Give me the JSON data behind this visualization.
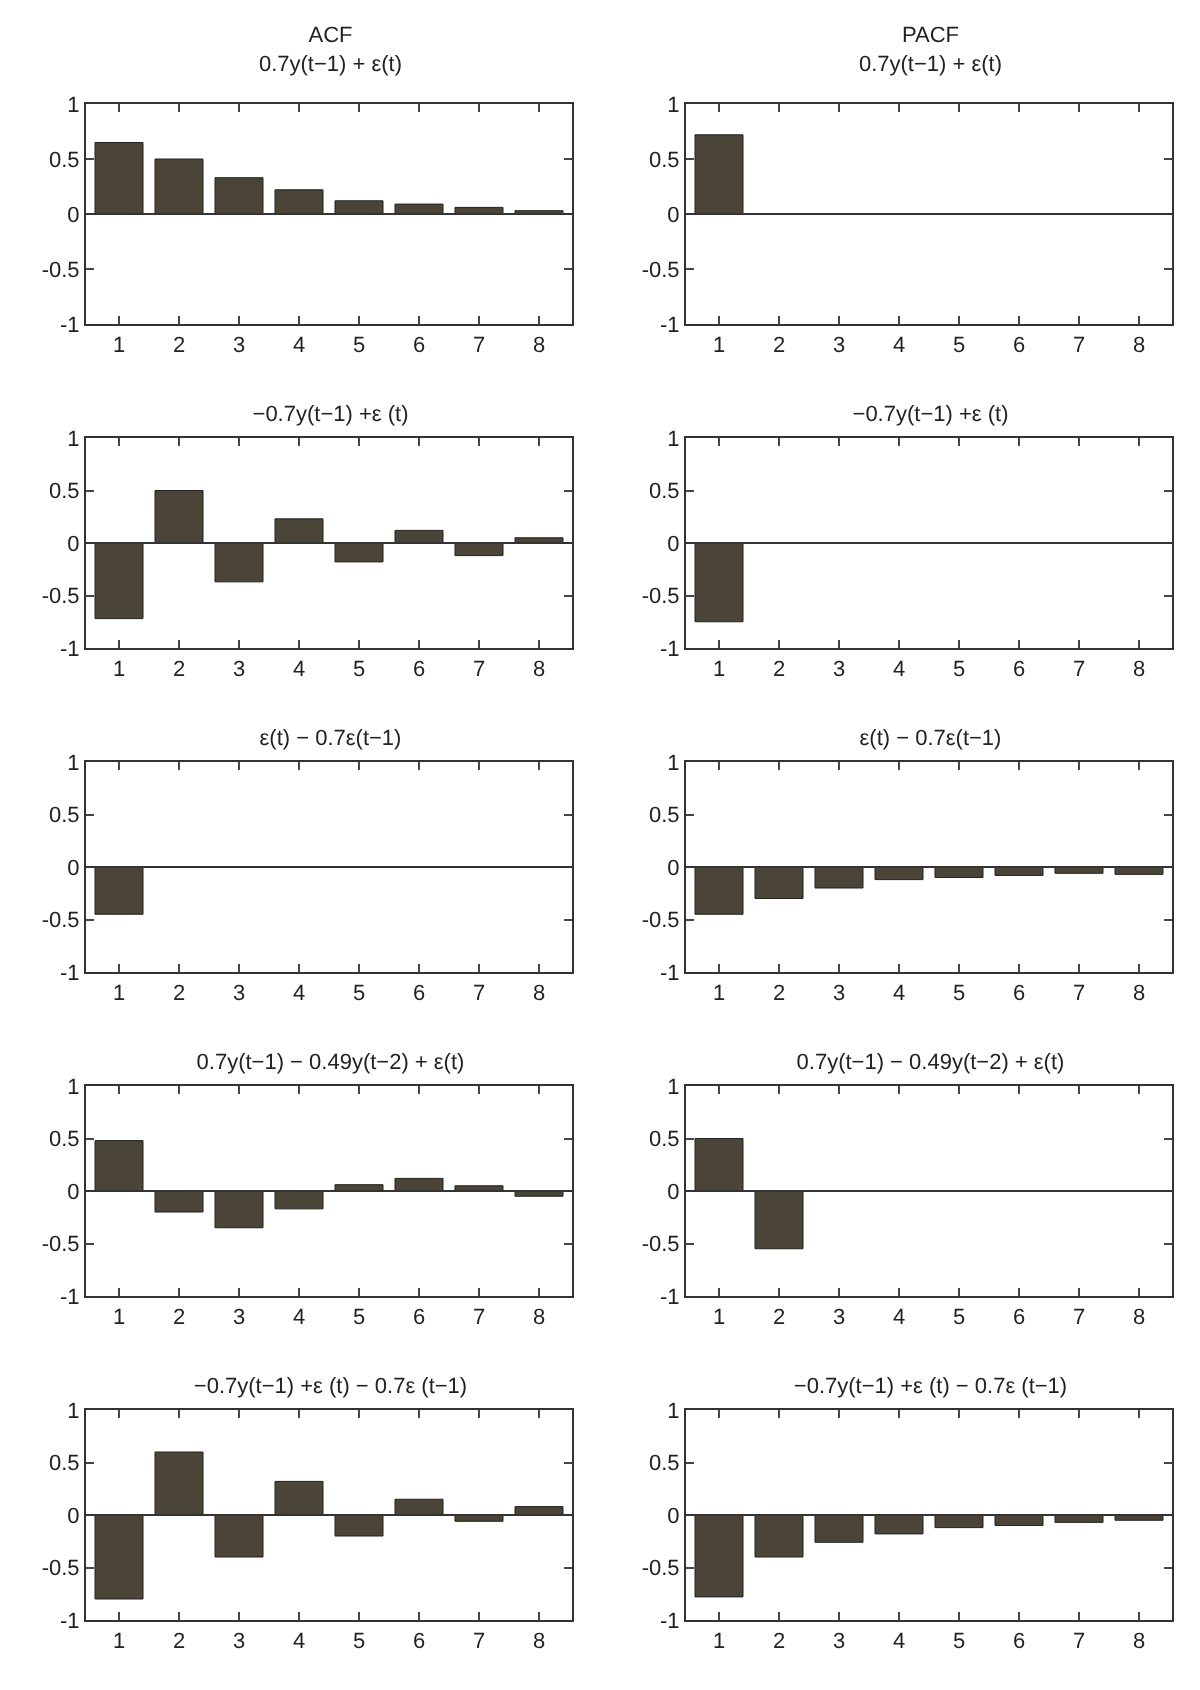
{
  "chart_data": [
    {
      "type": "bar",
      "title": "ACF",
      "subtitle": "0.7y(t−1) + ε(t)",
      "categories": [
        "1",
        "2",
        "3",
        "4",
        "5",
        "6",
        "7",
        "8"
      ],
      "values": [
        0.65,
        0.5,
        0.33,
        0.22,
        0.12,
        0.09,
        0.06,
        0.03
      ],
      "color": "#4a4536",
      "ylim": [
        -1,
        1
      ],
      "yticks": [
        -1,
        -0.5,
        0,
        0.5,
        1
      ],
      "grid": false,
      "ref_lines": [
        {
          "axis": "y",
          "value": 0,
          "color": "#333333"
        }
      ]
    },
    {
      "type": "bar",
      "title": "PACF",
      "subtitle": "0.7y(t−1) + ε(t)",
      "categories": [
        "1",
        "2",
        "3",
        "4",
        "5",
        "6",
        "7",
        "8"
      ],
      "values": [
        0.72,
        null,
        null,
        null,
        null,
        null,
        null,
        null
      ],
      "color": "#4a4536",
      "ylim": [
        -1,
        1
      ],
      "yticks": [
        -1,
        -0.5,
        0,
        0.5,
        1
      ],
      "grid": false,
      "ref_lines": [
        {
          "axis": "y",
          "value": 0,
          "color": "#333333"
        }
      ]
    },
    {
      "type": "bar",
      "title": "−0.7y(t−1) +ε (t)",
      "categories": [
        "1",
        "2",
        "3",
        "4",
        "5",
        "6",
        "7",
        "8"
      ],
      "values": [
        -0.72,
        0.5,
        -0.37,
        0.23,
        -0.18,
        0.12,
        -0.12,
        0.05
      ],
      "color": "#4a4536",
      "ylim": [
        -1,
        1
      ],
      "yticks": [
        -1,
        -0.5,
        0,
        0.5,
        1
      ],
      "grid": false,
      "ref_lines": [
        {
          "axis": "y",
          "value": 0,
          "color": "#333333"
        }
      ]
    },
    {
      "type": "bar",
      "title": "−0.7y(t−1) +ε (t)",
      "categories": [
        "1",
        "2",
        "3",
        "4",
        "5",
        "6",
        "7",
        "8"
      ],
      "values": [
        -0.75,
        null,
        null,
        null,
        null,
        null,
        null,
        null
      ],
      "color": "#4a4536",
      "ylim": [
        -1,
        1
      ],
      "yticks": [
        -1,
        -0.5,
        0,
        0.5,
        1
      ],
      "grid": false,
      "ref_lines": [
        {
          "axis": "y",
          "value": 0,
          "color": "#333333"
        }
      ]
    },
    {
      "type": "bar",
      "title": "ε(t) − 0.7ε(t−1)",
      "categories": [
        "1",
        "2",
        "3",
        "4",
        "5",
        "6",
        "7",
        "8"
      ],
      "values": [
        -0.45,
        null,
        null,
        null,
        null,
        null,
        null,
        null
      ],
      "color": "#4a4536",
      "ylim": [
        -1,
        1
      ],
      "yticks": [
        -1,
        -0.5,
        0,
        0.5,
        1
      ],
      "grid": false,
      "ref_lines": [
        {
          "axis": "y",
          "value": 0,
          "color": "#333333"
        }
      ]
    },
    {
      "type": "bar",
      "title": "ε(t) − 0.7ε(t−1)",
      "categories": [
        "1",
        "2",
        "3",
        "4",
        "5",
        "6",
        "7",
        "8"
      ],
      "values": [
        -0.45,
        -0.3,
        -0.2,
        -0.12,
        -0.1,
        -0.08,
        -0.06,
        -0.07
      ],
      "color": "#4a4536",
      "ylim": [
        -1,
        1
      ],
      "yticks": [
        -1,
        -0.5,
        0,
        0.5,
        1
      ],
      "grid": false,
      "ref_lines": [
        {
          "axis": "y",
          "value": 0,
          "color": "#333333"
        }
      ]
    },
    {
      "type": "bar",
      "title": "0.7y(t−1) − 0.49y(t−2) + ε(t)",
      "categories": [
        "1",
        "2",
        "3",
        "4",
        "5",
        "6",
        "7",
        "8"
      ],
      "values": [
        0.48,
        -0.2,
        -0.35,
        -0.17,
        0.06,
        0.12,
        0.05,
        -0.05
      ],
      "color": "#4a4536",
      "ylim": [
        -1,
        1
      ],
      "yticks": [
        -1,
        -0.5,
        0,
        0.5,
        1
      ],
      "grid": false,
      "ref_lines": [
        {
          "axis": "y",
          "value": 0,
          "color": "#333333"
        }
      ]
    },
    {
      "type": "bar",
      "title": "0.7y(t−1) − 0.49y(t−2) + ε(t)",
      "categories": [
        "1",
        "2",
        "3",
        "4",
        "5",
        "6",
        "7",
        "8"
      ],
      "values": [
        0.5,
        -0.55,
        null,
        null,
        null,
        null,
        null,
        null
      ],
      "color": "#4a4536",
      "ylim": [
        -1,
        1
      ],
      "yticks": [
        -1,
        -0.5,
        0,
        0.5,
        1
      ],
      "grid": false,
      "ref_lines": [
        {
          "axis": "y",
          "value": 0,
          "color": "#333333"
        }
      ]
    },
    {
      "type": "bar",
      "title": "−0.7y(t−1) +ε (t) − 0.7ε (t−1)",
      "categories": [
        "1",
        "2",
        "3",
        "4",
        "5",
        "6",
        "7",
        "8"
      ],
      "values": [
        -0.8,
        0.6,
        -0.4,
        0.32,
        -0.2,
        0.15,
        -0.06,
        0.08
      ],
      "color": "#4a4536",
      "ylim": [
        -1,
        1
      ],
      "yticks": [
        -1,
        -0.5,
        0,
        0.5,
        1
      ],
      "grid": false,
      "ref_lines": [
        {
          "axis": "y",
          "value": 0,
          "color": "#333333"
        }
      ]
    },
    {
      "type": "bar",
      "title": "−0.7y(t−1) +ε (t) − 0.7ε (t−1)",
      "categories": [
        "1",
        "2",
        "3",
        "4",
        "5",
        "6",
        "7",
        "8"
      ],
      "values": [
        -0.78,
        -0.4,
        -0.26,
        -0.18,
        -0.12,
        -0.1,
        -0.07,
        -0.05
      ],
      "color": "#4a4536",
      "ylim": [
        -1,
        1
      ],
      "yticks": [
        -1,
        -0.5,
        0,
        0.5,
        1
      ],
      "grid": false,
      "ref_lines": [
        {
          "axis": "y",
          "value": 0,
          "color": "#333333"
        }
      ]
    }
  ]
}
